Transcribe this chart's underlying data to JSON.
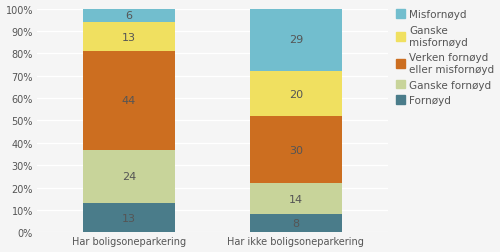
{
  "categories": [
    "Har boligsoneparkering",
    "Har ikke boligsoneparkering"
  ],
  "series": [
    {
      "label": "Fornøyd",
      "values": [
        13,
        8
      ],
      "color": "#4a7c8a"
    },
    {
      "label": "Ganske fornøyd",
      "values": [
        24,
        14
      ],
      "color": "#c8d49a"
    },
    {
      "label": "Verken fornøyd\neller misfornøyd",
      "values": [
        44,
        30
      ],
      "color": "#cc6e20"
    },
    {
      "label": "Ganske\nmisfornøyd",
      "values": [
        13,
        20
      ],
      "color": "#f0e060"
    },
    {
      "label": "Misfornøyd",
      "values": [
        6,
        29
      ],
      "color": "#72bece"
    }
  ],
  "ylim": [
    0,
    100
  ],
  "yticks": [
    0,
    10,
    20,
    30,
    40,
    50,
    60,
    70,
    80,
    90,
    100
  ],
  "ytick_labels": [
    "0%",
    "10%",
    "20%",
    "30%",
    "40%",
    "50%",
    "60%",
    "70%",
    "80%",
    "90%",
    "100%"
  ],
  "background_color": "#f5f5f5",
  "bar_width": 0.55,
  "text_color": "#555555",
  "grid_color": "#ffffff",
  "label_fontsize": 8,
  "tick_fontsize": 7,
  "legend_fontsize": 7.5
}
